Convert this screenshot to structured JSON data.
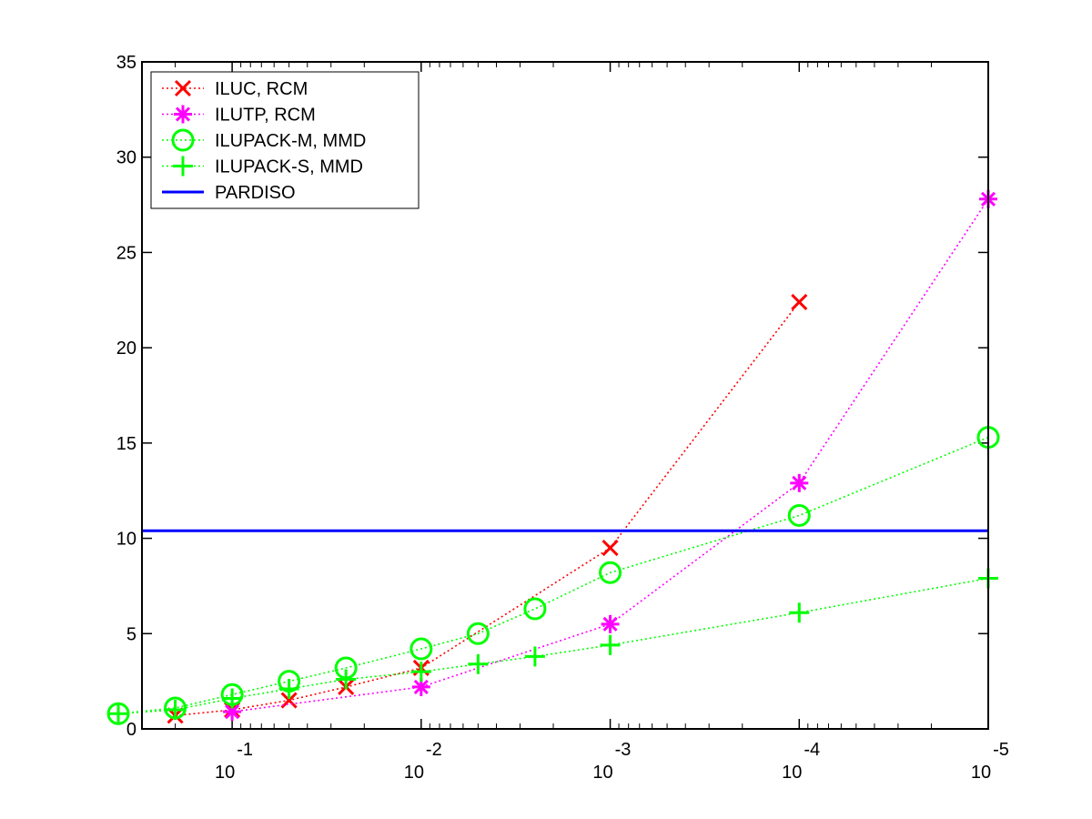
{
  "chart_data": {
    "type": "line",
    "title": "",
    "xlabel": "",
    "ylabel": "",
    "x_scale": "log",
    "x_direction": "decreasing",
    "xlim": [
      0.3,
      1e-05
    ],
    "ylim": [
      0,
      35
    ],
    "grid": false,
    "legend_position": "top-left",
    "x_ticks": [
      {
        "value": 0.1,
        "base": "10",
        "exp": "-1"
      },
      {
        "value": 0.01,
        "base": "10",
        "exp": "-2"
      },
      {
        "value": 0.001,
        "base": "10",
        "exp": "-3"
      },
      {
        "value": 0.0001,
        "base": "10",
        "exp": "-4"
      },
      {
        "value": 1e-05,
        "base": "10",
        "exp": "-5"
      }
    ],
    "y_ticks": [
      "0",
      "5",
      "10",
      "15",
      "20",
      "25",
      "30",
      "35"
    ],
    "series": [
      {
        "name": "ILUC, RCM",
        "color": "#ff0000",
        "marker": "x",
        "x": [
          0.2,
          0.1,
          0.05,
          0.025,
          0.01,
          0.001,
          0.0001
        ],
        "y": [
          0.7,
          1.0,
          1.5,
          2.2,
          3.2,
          9.5,
          22.4
        ]
      },
      {
        "name": "ILUTP, RCM",
        "color": "#ff00ff",
        "marker": "star",
        "x": [
          0.1,
          0.01,
          0.001,
          0.0001,
          1e-05
        ],
        "y": [
          0.9,
          2.2,
          5.5,
          12.9,
          27.8
        ]
      },
      {
        "name": "ILUPACK-M, MMD",
        "color": "#00ff00",
        "marker": "circle",
        "x": [
          0.4,
          0.2,
          0.1,
          0.05,
          0.025,
          0.01,
          0.005,
          0.0025,
          0.001,
          0.0001,
          1e-05
        ],
        "y": [
          0.8,
          1.1,
          1.8,
          2.5,
          3.2,
          4.2,
          5.0,
          6.3,
          8.2,
          11.2,
          15.3
        ]
      },
      {
        "name": "ILUPACK-S, MMD",
        "color": "#00ff00",
        "marker": "plus",
        "x": [
          0.4,
          0.2,
          0.1,
          0.05,
          0.025,
          0.01,
          0.005,
          0.0025,
          0.001,
          0.0001,
          1e-05
        ],
        "y": [
          0.8,
          1.0,
          1.6,
          2.1,
          2.6,
          3.0,
          3.4,
          3.8,
          4.4,
          6.1,
          7.9
        ]
      },
      {
        "name": "PARDISO",
        "color": "#0000ff",
        "marker": "none",
        "x": [
          0.3,
          1e-05
        ],
        "y": [
          10.4,
          10.4
        ]
      }
    ]
  }
}
